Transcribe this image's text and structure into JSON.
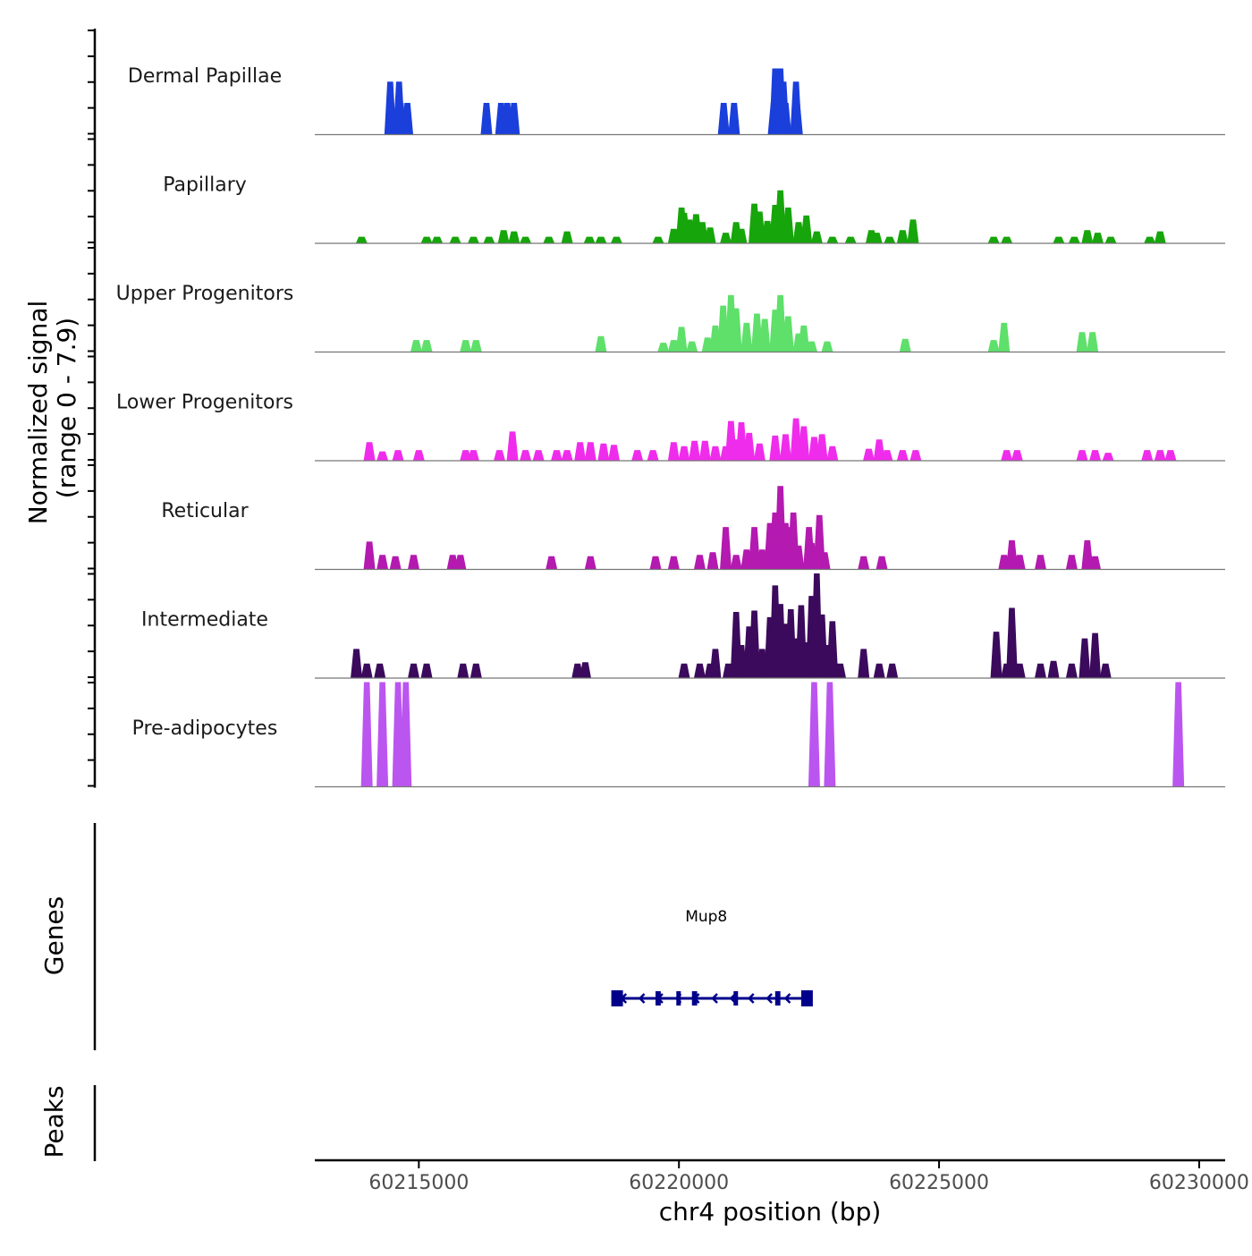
{
  "chart_data": {
    "type": "area",
    "title": "",
    "ylabel": "Normalized signal",
    "ylabel_range": "(range 0 - 7.9)",
    "y_range": [
      0,
      7.9
    ],
    "xlabel": "chr4 position (bp)",
    "xlim": [
      60213000,
      60230500
    ],
    "x_ticks": [
      60215000,
      60220000,
      60225000,
      60230000
    ],
    "x_tick_labels": [
      "60215000",
      "60220000",
      "60225000",
      "60230000"
    ],
    "tracks": [
      {
        "name": "Dermal Papillae",
        "color": "#1a3fdb",
        "points": [
          [
            60214450,
            4
          ],
          [
            60214450,
            2.4
          ],
          [
            60214600,
            2.4
          ],
          [
            60214620,
            4
          ],
          [
            60214650,
            2.4
          ],
          [
            60214780,
            2.4
          ],
          [
            60216300,
            2.4
          ],
          [
            60216580,
            2.4
          ],
          [
            60216700,
            2.4
          ],
          [
            60216830,
            2.4
          ],
          [
            60220860,
            2.4
          ],
          [
            60221060,
            2.4
          ],
          [
            60221820,
            2.4
          ],
          [
            60221850,
            5
          ],
          [
            60221900,
            4
          ],
          [
            60221950,
            5
          ],
          [
            60222010,
            4
          ],
          [
            60222050,
            2.4
          ],
          [
            60222250,
            4
          ],
          [
            60222270,
            2.4
          ]
        ]
      },
      {
        "name": "Papillary",
        "color": "#16a50a",
        "points": [
          [
            60213900,
            0.5
          ],
          [
            60215150,
            0.5
          ],
          [
            60215350,
            0.5
          ],
          [
            60215700,
            0.5
          ],
          [
            60216050,
            0.5
          ],
          [
            60216350,
            0.5
          ],
          [
            60216630,
            1
          ],
          [
            60216830,
            0.9
          ],
          [
            60217050,
            0.5
          ],
          [
            60217500,
            0.5
          ],
          [
            60217850,
            0.9
          ],
          [
            60218280,
            0.5
          ],
          [
            60218500,
            0.5
          ],
          [
            60218800,
            0.5
          ],
          [
            60219600,
            0.5
          ],
          [
            60219900,
            1.1
          ],
          [
            60220050,
            2.7
          ],
          [
            60220100,
            2.3
          ],
          [
            60220200,
            1.8
          ],
          [
            60220330,
            2.2
          ],
          [
            60220450,
            1.6
          ],
          [
            60220600,
            1.2
          ],
          [
            60220900,
            0.8
          ],
          [
            60221100,
            1.6
          ],
          [
            60221200,
            1.1
          ],
          [
            60221450,
            3
          ],
          [
            60221550,
            2.4
          ],
          [
            60221700,
            1.7
          ],
          [
            60221850,
            2.9
          ],
          [
            60221950,
            4
          ],
          [
            60222100,
            2.7
          ],
          [
            60222300,
            1.6
          ],
          [
            60222450,
            2.1
          ],
          [
            60222650,
            0.9
          ],
          [
            60222950,
            0.5
          ],
          [
            60223300,
            0.5
          ],
          [
            60223700,
            1
          ],
          [
            60223800,
            0.8
          ],
          [
            60224050,
            0.5
          ],
          [
            60224300,
            1
          ],
          [
            60224500,
            1.8
          ],
          [
            60226050,
            0.5
          ],
          [
            60226300,
            0.5
          ],
          [
            60227300,
            0.5
          ],
          [
            60227600,
            0.5
          ],
          [
            60227850,
            1
          ],
          [
            60228050,
            0.8
          ],
          [
            60228300,
            0.5
          ],
          [
            60229050,
            0.5
          ],
          [
            60229250,
            0.9
          ]
        ]
      },
      {
        "name": "Upper Progenitors",
        "color": "#5ee06a",
        "points": [
          [
            60214950,
            0.9
          ],
          [
            60215150,
            0.9
          ],
          [
            60215900,
            0.9
          ],
          [
            60216100,
            0.9
          ],
          [
            60218500,
            1.2
          ],
          [
            60219700,
            0.7
          ],
          [
            60219900,
            0.9
          ],
          [
            60220050,
            1.9
          ],
          [
            60220250,
            0.8
          ],
          [
            60220550,
            1.1
          ],
          [
            60220700,
            2
          ],
          [
            60220850,
            3.5
          ],
          [
            60221000,
            4.3
          ],
          [
            60221100,
            3.3
          ],
          [
            60221300,
            2.2
          ],
          [
            60221500,
            2.9
          ],
          [
            60221650,
            2.5
          ],
          [
            60221850,
            3.2
          ],
          [
            60221950,
            4.3
          ],
          [
            60222100,
            2.7
          ],
          [
            60222300,
            1.4
          ],
          [
            60222400,
            2
          ],
          [
            60222550,
            0.8
          ],
          [
            60222850,
            0.8
          ],
          [
            60224350,
            1
          ],
          [
            60226050,
            0.9
          ],
          [
            60226250,
            2.2
          ],
          [
            60227750,
            1.5
          ],
          [
            60227950,
            1.5
          ]
        ]
      },
      {
        "name": "Lower Progenitors",
        "color": "#f02cec",
        "points": [
          [
            60214050,
            1.4
          ],
          [
            60214300,
            0.7
          ],
          [
            60214600,
            0.8
          ],
          [
            60215000,
            0.8
          ],
          [
            60215900,
            0.8
          ],
          [
            60216050,
            0.8
          ],
          [
            60216550,
            0.8
          ],
          [
            60216800,
            2.2
          ],
          [
            60217050,
            0.8
          ],
          [
            60217300,
            0.8
          ],
          [
            60217650,
            0.8
          ],
          [
            60217850,
            0.8
          ],
          [
            60218100,
            1.4
          ],
          [
            60218300,
            1.4
          ],
          [
            60218550,
            1.3
          ],
          [
            60218750,
            1.2
          ],
          [
            60219200,
            0.8
          ],
          [
            60219500,
            0.8
          ],
          [
            60219900,
            1.4
          ],
          [
            60220100,
            1.1
          ],
          [
            60220300,
            1.5
          ],
          [
            60220500,
            1.5
          ],
          [
            60220700,
            1.1
          ],
          [
            60220900,
            1.1
          ],
          [
            60221000,
            3
          ],
          [
            60221100,
            1.6
          ],
          [
            60221200,
            2.9
          ],
          [
            60221350,
            2.1
          ],
          [
            60221550,
            1.3
          ],
          [
            60221850,
            1.9
          ],
          [
            60222050,
            2
          ],
          [
            60222250,
            3.2
          ],
          [
            60222400,
            2.6
          ],
          [
            60222600,
            1.8
          ],
          [
            60222750,
            2
          ],
          [
            60222950,
            1.1
          ],
          [
            60223650,
            0.9
          ],
          [
            60223850,
            1.6
          ],
          [
            60224000,
            0.8
          ],
          [
            60224300,
            0.8
          ],
          [
            60224550,
            0.8
          ],
          [
            60226300,
            0.8
          ],
          [
            60226500,
            0.8
          ],
          [
            60227750,
            0.8
          ],
          [
            60228000,
            0.8
          ],
          [
            60228250,
            0.6
          ],
          [
            60229000,
            0.8
          ],
          [
            60229250,
            0.8
          ],
          [
            60229450,
            0.8
          ]
        ]
      },
      {
        "name": "Reticular",
        "color": "#b419b0",
        "points": [
          [
            60214050,
            2.1
          ],
          [
            60214300,
            1.1
          ],
          [
            60214550,
            1
          ],
          [
            60214900,
            1.1
          ],
          [
            60215650,
            1.1
          ],
          [
            60215800,
            1.1
          ],
          [
            60217550,
            1
          ],
          [
            60218300,
            1
          ],
          [
            60219550,
            1
          ],
          [
            60219900,
            1
          ],
          [
            60220400,
            1.1
          ],
          [
            60220650,
            1.3
          ],
          [
            60220900,
            3.2
          ],
          [
            60221100,
            1.1
          ],
          [
            60221300,
            1.5
          ],
          [
            60221450,
            3.2
          ],
          [
            60221600,
            1.5
          ],
          [
            60221750,
            3.5
          ],
          [
            60221850,
            4.3
          ],
          [
            60221950,
            6.3
          ],
          [
            60222050,
            3.5
          ],
          [
            60222150,
            3.2
          ],
          [
            60222200,
            4.3
          ],
          [
            60222300,
            1.8
          ],
          [
            60222500,
            3.2
          ],
          [
            60222550,
            2
          ],
          [
            60222700,
            4.1
          ],
          [
            60222800,
            1.3
          ],
          [
            60223550,
            1
          ],
          [
            60223900,
            1
          ],
          [
            60226250,
            1.1
          ],
          [
            60226400,
            2.2
          ],
          [
            60226550,
            1.1
          ],
          [
            60226950,
            1.1
          ],
          [
            60227550,
            1.1
          ],
          [
            60227850,
            2.2
          ],
          [
            60228000,
            1
          ]
        ]
      },
      {
        "name": "Intermediate",
        "color": "#3b0a5c",
        "points": [
          [
            60213800,
            2.2
          ],
          [
            60214000,
            1.1
          ],
          [
            60214250,
            1.1
          ],
          [
            60214900,
            1.1
          ],
          [
            60215150,
            1.1
          ],
          [
            60215850,
            1.1
          ],
          [
            60216100,
            1.1
          ],
          [
            60218050,
            1.1
          ],
          [
            60218200,
            1.2
          ],
          [
            60220100,
            1.1
          ],
          [
            60220400,
            1.1
          ],
          [
            60220600,
            1.1
          ],
          [
            60220700,
            2.2
          ],
          [
            60220950,
            1.1
          ],
          [
            60221100,
            5
          ],
          [
            60221200,
            2.5
          ],
          [
            60221350,
            3.9
          ],
          [
            60221450,
            5.1
          ],
          [
            60221600,
            2.2
          ],
          [
            60221750,
            4.6
          ],
          [
            60221850,
            7
          ],
          [
            60221950,
            5.6
          ],
          [
            60222050,
            4.1
          ],
          [
            60222150,
            5.2
          ],
          [
            60222250,
            3
          ],
          [
            60222350,
            5.5
          ],
          [
            60222450,
            2.7
          ],
          [
            60222550,
            6.2
          ],
          [
            60222650,
            7.9
          ],
          [
            60222750,
            4.8
          ],
          [
            60222850,
            2.5
          ],
          [
            60222950,
            4.3
          ],
          [
            60223100,
            1.1
          ],
          [
            60223550,
            2.2
          ],
          [
            60223850,
            1.1
          ],
          [
            60224100,
            1.1
          ],
          [
            60226100,
            3.5
          ],
          [
            60226300,
            1.1
          ],
          [
            60226400,
            5.3
          ],
          [
            60226550,
            1.1
          ],
          [
            60226950,
            1.1
          ],
          [
            60227200,
            1.3
          ],
          [
            60227550,
            1.1
          ],
          [
            60227800,
            3
          ],
          [
            60228000,
            3.4
          ],
          [
            60228200,
            1.1
          ]
        ]
      },
      {
        "name": "Pre-adipocytes",
        "color": "#bb55f0",
        "points": [
          [
            60214000,
            7.9
          ],
          [
            60214300,
            7.9
          ],
          [
            60214600,
            7.9
          ],
          [
            60214750,
            7.9
          ],
          [
            60222600,
            7.9
          ],
          [
            60222900,
            7.9
          ],
          [
            60229600,
            7.9
          ]
        ]
      }
    ],
    "genes_label": "Genes",
    "genes": [
      {
        "name": "Mup8",
        "strand": "-",
        "start": 60218700,
        "end": 60222350,
        "exons": [
          [
            60218700,
            60218800
          ],
          [
            60219550,
            60219650
          ],
          [
            60219950,
            60220000
          ],
          [
            60220250,
            60220350
          ],
          [
            60221050,
            60221080
          ],
          [
            60221850,
            60221950
          ],
          [
            60222350,
            60222450
          ]
        ]
      }
    ],
    "peaks_label": "Peaks",
    "peaks": []
  }
}
